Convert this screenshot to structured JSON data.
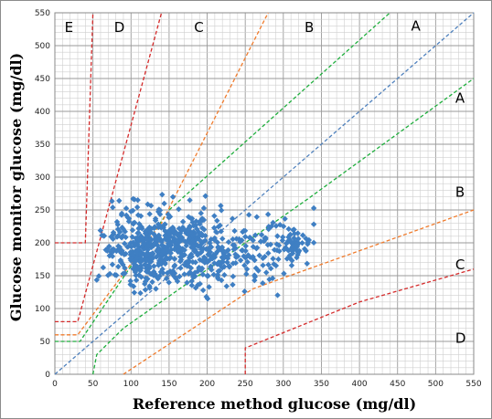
{
  "chart_data": {
    "type": "scatter",
    "title": "",
    "xlabel": "Reference method glucose (mg/dl)",
    "ylabel": "Glucose monitor glucose (mg/dl)",
    "xlim": [
      0,
      550
    ],
    "ylim": [
      0,
      550
    ],
    "x_ticks": [
      0,
      50,
      100,
      150,
      200,
      250,
      300,
      350,
      400,
      450,
      500,
      550
    ],
    "y_ticks": [
      0,
      50,
      100,
      150,
      200,
      250,
      300,
      350,
      400,
      450,
      500,
      550
    ],
    "grid": true,
    "minor_grid_step": 10,
    "legend": "none",
    "zone_labels": [
      {
        "text": "E",
        "x": 20,
        "y": 528
      },
      {
        "text": "D",
        "x": 85,
        "y": 528
      },
      {
        "text": "C",
        "x": 190,
        "y": 528
      },
      {
        "text": "B",
        "x": 335,
        "y": 528
      },
      {
        "text": "A",
        "x": 475,
        "y": 530
      },
      {
        "text": "A",
        "x": 533,
        "y": 420
      },
      {
        "text": "B",
        "x": 533,
        "y": 277
      },
      {
        "text": "C",
        "x": 533,
        "y": 167
      },
      {
        "text": "D",
        "x": 533,
        "y": 55
      }
    ],
    "boundary_lines": [
      {
        "zone": "identity",
        "color": "#4f81bd",
        "points": [
          [
            0,
            0
          ],
          [
            550,
            550
          ]
        ]
      },
      {
        "zone": "A-upper",
        "color": "#1eae3c",
        "points": [
          [
            0,
            50
          ],
          [
            33,
            50
          ],
          [
            150,
            250
          ],
          [
            440,
            550
          ]
        ]
      },
      {
        "zone": "A-lower",
        "color": "#1eae3c",
        "points": [
          [
            50,
            0
          ],
          [
            55,
            30
          ],
          [
            90,
            70
          ],
          [
            330,
            265
          ],
          [
            550,
            450
          ]
        ]
      },
      {
        "zone": "B-upper",
        "color": "#f07b2c",
        "points": [
          [
            0,
            60
          ],
          [
            30,
            60
          ],
          [
            140,
            230
          ],
          [
            280,
            550
          ]
        ]
      },
      {
        "zone": "B-lower",
        "color": "#f07b2c",
        "points": [
          [
            90,
            0
          ],
          [
            260,
            130
          ],
          [
            550,
            250
          ]
        ]
      },
      {
        "zone": "C-upper",
        "color": "#d42a2a",
        "points": [
          [
            0,
            80
          ],
          [
            30,
            80
          ],
          [
            140,
            550
          ]
        ]
      },
      {
        "zone": "D-upper",
        "color": "#d42a2a",
        "points": [
          [
            0,
            200
          ],
          [
            40,
            200
          ],
          [
            50,
            550
          ]
        ]
      },
      {
        "zone": "D-lower",
        "color": "#d42a2a",
        "points": [
          [
            250,
            0
          ],
          [
            250,
            40
          ],
          [
            400,
            110
          ],
          [
            550,
            160
          ]
        ]
      }
    ],
    "series": [
      {
        "marker_color": "#3f7fc3",
        "clusters": [
          {
            "x_mean": 115,
            "x_sd": 26,
            "y_mean": 188,
            "y_sd": 24,
            "n": 310
          },
          {
            "x_mean": 175,
            "x_sd": 28,
            "y_mean": 196,
            "y_sd": 28,
            "n": 230
          },
          {
            "x_mean": 250,
            "x_sd": 38,
            "y_mean": 190,
            "y_sd": 22,
            "n": 140
          },
          {
            "x_mean": 315,
            "x_sd": 12,
            "y_mean": 196,
            "y_sd": 16,
            "n": 45
          },
          {
            "x_mean": 100,
            "x_sd": 20,
            "y_mean": 250,
            "y_sd": 14,
            "n": 20
          },
          {
            "x_mean": 215,
            "x_sd": 40,
            "y_mean": 150,
            "y_sd": 14,
            "n": 30
          }
        ]
      }
    ]
  }
}
